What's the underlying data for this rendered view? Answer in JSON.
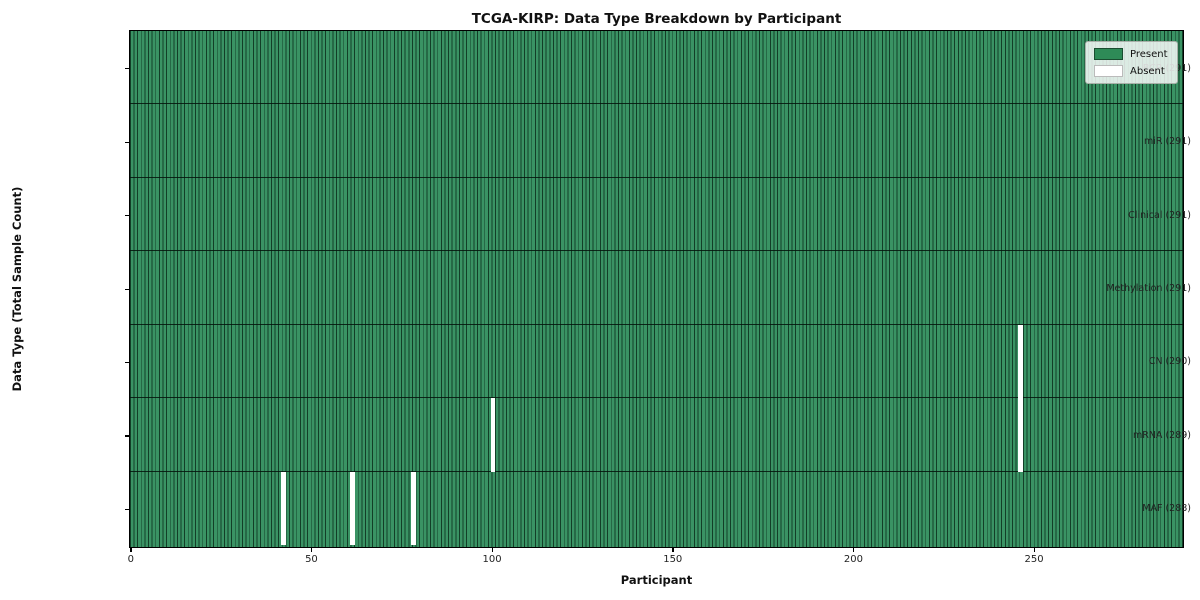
{
  "title": "TCGA-KIRP: Data Type Breakdown by Participant",
  "axes": {
    "xlabel": "Participant",
    "ylabel": "Data Type (Total Sample Count)"
  },
  "legend": {
    "present_label": "Present",
    "absent_label": "Absent"
  },
  "colors": {
    "present": "#2e8b57",
    "present_edge": "#1a4d30",
    "absent": "#ffffff",
    "absent_edge": "#bbbbbb"
  },
  "chart_data": {
    "type": "heatmap",
    "title": "TCGA-KIRP: Data Type Breakdown by Participant",
    "xlabel": "Participant",
    "ylabel": "Data Type (Total Sample Count)",
    "x_range": [
      0,
      291
    ],
    "total_participants": 291,
    "x_ticks": [
      0,
      50,
      100,
      150,
      200,
      250
    ],
    "legend_entries": [
      "Present",
      "Absent"
    ],
    "legend_position": "upper right",
    "rows": [
      {
        "label": "BCR (291)",
        "data_type": "BCR",
        "present_count": 291,
        "absent_participants": []
      },
      {
        "label": "miR (291)",
        "data_type": "miR",
        "present_count": 291,
        "absent_participants": []
      },
      {
        "label": "Clinical (291)",
        "data_type": "Clinical",
        "present_count": 291,
        "absent_participants": []
      },
      {
        "label": "Methylation (291)",
        "data_type": "Methylation",
        "present_count": 291,
        "absent_participants": []
      },
      {
        "label": "CN (290)",
        "data_type": "CN",
        "present_count": 290,
        "absent_participants": [
          246
        ]
      },
      {
        "label": "mRNA (289)",
        "data_type": "mRNA",
        "present_count": 289,
        "absent_participants": [
          100,
          246
        ]
      },
      {
        "label": "MAF (288)",
        "data_type": "MAF",
        "present_count": 288,
        "absent_participants": [
          42,
          61,
          78
        ]
      }
    ]
  }
}
